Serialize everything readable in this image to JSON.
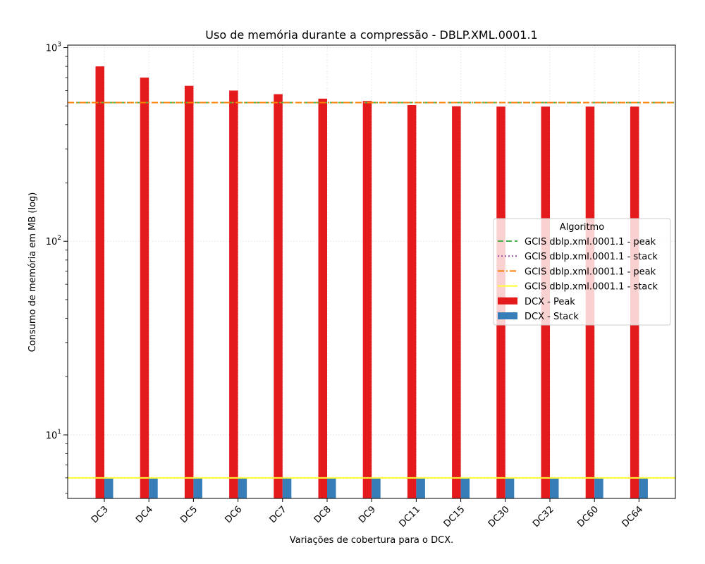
{
  "chart_data": {
    "type": "bar",
    "title": "Uso de memória durante a compressão -  DBLP.XML.0001.1",
    "xlabel": "Variações de cobertura para o DCX.",
    "ylabel": "Consumo de memória em MB (log)",
    "yscale": "log",
    "ylim": [
      4.7,
      1030
    ],
    "grid": true,
    "categories": [
      "DC3",
      "DC4",
      "DC5",
      "DC6",
      "DC7",
      "DC8",
      "DC9",
      "DC11",
      "DC15",
      "DC30",
      "DC32",
      "DC60",
      "DC64"
    ],
    "series": [
      {
        "name": "DCX - Peak",
        "color": "#e41a1c",
        "values": [
          800,
          700,
          635,
          600,
          575,
          545,
          530,
          505,
          498,
          496,
          496,
          496,
          496
        ]
      },
      {
        "name": "DCX - Stack",
        "color": "#377eb8",
        "values": [
          6,
          6,
          6,
          6,
          6,
          6,
          6,
          6,
          6,
          6,
          6,
          6,
          6
        ]
      }
    ],
    "reference_lines": [
      {
        "name": "GCIS dblp.xml.0001.1 - peak",
        "value": 520,
        "color": "#4daf4a",
        "style": "dashed"
      },
      {
        "name": "GCIS dblp.xml.0001.1 - stack",
        "value": 6,
        "color": "#984ea3",
        "style": "dotted"
      },
      {
        "name": "GCIS dblp.xml.0001.1 - peak",
        "value": 520,
        "color": "#ff7f00",
        "style": "dashdot"
      },
      {
        "name": "GCIS dblp.xml.0001.1 - stack",
        "value": 6,
        "color": "#ffff33",
        "style": "solid"
      }
    ],
    "y_ticks": [
      {
        "value": 10,
        "base": "10",
        "exp": "1"
      },
      {
        "value": 100,
        "base": "10",
        "exp": "2"
      },
      {
        "value": 1000,
        "base": "10",
        "exp": "3"
      }
    ],
    "legend": {
      "title": "Algoritmo",
      "placement": "center-right"
    }
  }
}
